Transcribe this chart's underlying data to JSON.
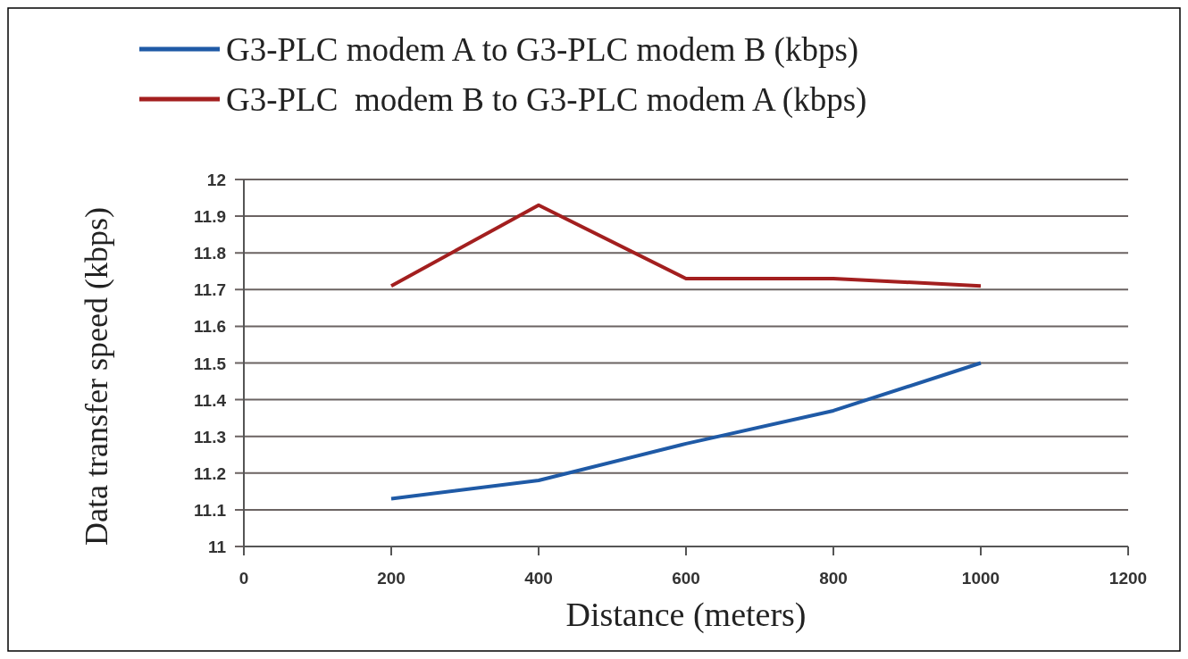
{
  "chart_data": {
    "type": "line",
    "xlabel": "Distance (meters)",
    "ylabel": "Data transfer speed (kbps)",
    "x": [
      200,
      400,
      600,
      800,
      1000
    ],
    "series": [
      {
        "name": "G3-PLC modem A to G3-PLC modem B (kbps)",
        "color": "#1f5aa6",
        "values": [
          11.13,
          11.18,
          11.28,
          11.37,
          11.5
        ]
      },
      {
        "name": "G3-PLC  modem B to G3-PLC modem A (kbps)",
        "color": "#a31f1f",
        "values": [
          11.71,
          11.93,
          11.73,
          11.73,
          11.71
        ]
      }
    ],
    "xlim": [
      0,
      1200
    ],
    "xticks": [
      0,
      200,
      400,
      600,
      800,
      1000,
      1200
    ],
    "ylim": [
      11,
      12
    ],
    "yticks": [
      11,
      {
        "value": 11.1,
        "label": "11.1"
      },
      {
        "value": 11.2,
        "label": "11.2"
      },
      {
        "value": 11.3,
        "label": "11.3"
      },
      {
        "value": 11.4,
        "label": "11.4"
      },
      {
        "value": 11.5,
        "label": "11.5"
      },
      {
        "value": 11.6,
        "label": "11.6"
      },
      {
        "value": 11.7,
        "label": "11.7"
      },
      {
        "value": 11.8,
        "label": "11.8"
      },
      {
        "value": 11.9,
        "label": "11.9"
      },
      12
    ],
    "grid": "y",
    "legend": "top",
    "marker": "none",
    "line_style": "solid"
  }
}
